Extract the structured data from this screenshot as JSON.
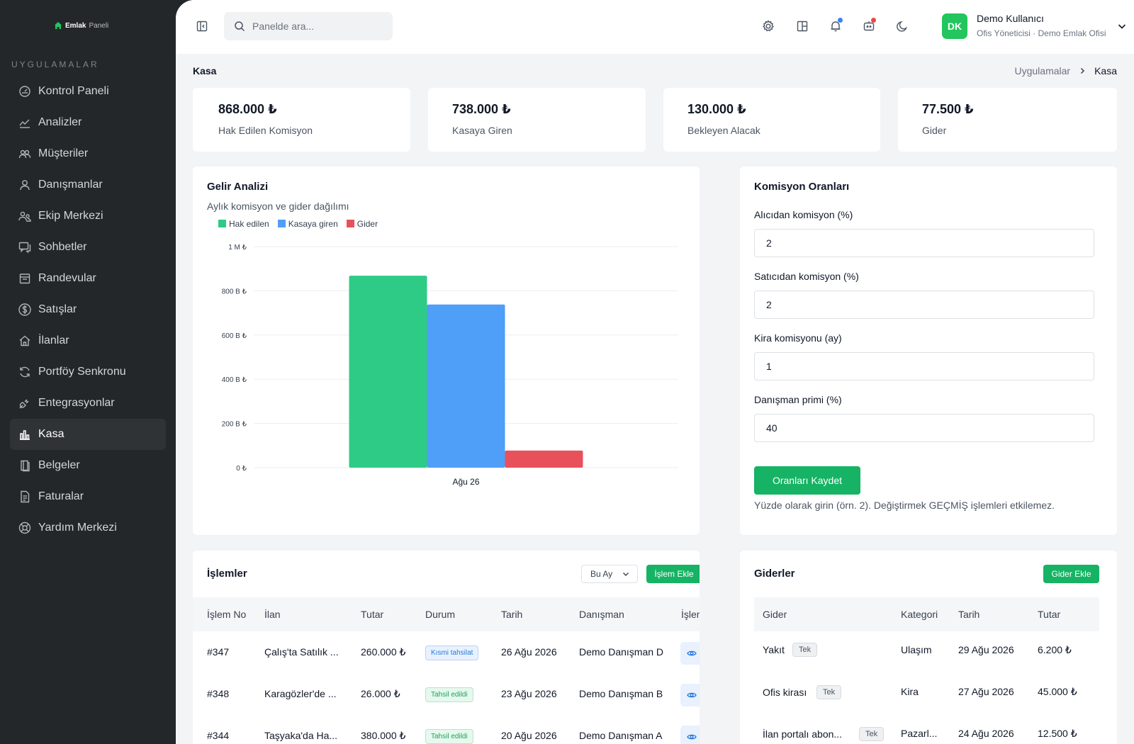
{
  "brand": {
    "name": "Emlak",
    "suffix": "Paneli"
  },
  "sidebar": {
    "section_title": "UYGULAMALAR",
    "items": [
      {
        "label": "Kontrol Paneli",
        "icon": "dashboard-icon"
      },
      {
        "label": "Analizler",
        "icon": "analytics-icon"
      },
      {
        "label": "Müşteriler",
        "icon": "customers-icon"
      },
      {
        "label": "Danışmanlar",
        "icon": "user-icon"
      },
      {
        "label": "Ekip Merkezi",
        "icon": "team-icon"
      },
      {
        "label": "Sohbetler",
        "icon": "chat-icon"
      },
      {
        "label": "Randevular",
        "icon": "calendar-icon"
      },
      {
        "label": "Satışlar",
        "icon": "dollar-icon"
      },
      {
        "label": "İlanlar",
        "icon": "home-icon"
      },
      {
        "label": "Portföy Senkronu",
        "icon": "sync-icon"
      },
      {
        "label": "Entegrasyonlar",
        "icon": "plug-icon"
      },
      {
        "label": "Kasa",
        "icon": "bar-chart-icon",
        "active": true
      },
      {
        "label": "Belgeler",
        "icon": "book-icon"
      },
      {
        "label": "Faturalar",
        "icon": "invoice-icon"
      },
      {
        "label": "Yardım Merkezi",
        "icon": "help-icon"
      }
    ]
  },
  "topbar": {
    "search_placeholder": "Panelde ara...",
    "user": {
      "initials": "DK",
      "name": "Demo Kullanıcı",
      "role": "Ofis Yöneticisi · Demo Emlak Ofisi"
    },
    "accent": "#22c55e",
    "notification_dot_color": "#3b82f6",
    "chat_dot_color": "#ef4444"
  },
  "page": {
    "title": "Kasa",
    "breadcrumb": [
      "Uygulamalar",
      "Kasa"
    ]
  },
  "stats": [
    {
      "value": "868.000 ₺",
      "label": "Hak Edilen Komisyon"
    },
    {
      "value": "738.000 ₺",
      "label": "Kasaya Giren"
    },
    {
      "value": "130.000 ₺",
      "label": "Bekleyen Alacak"
    },
    {
      "value": "77.500 ₺",
      "label": "Gider"
    }
  ],
  "revenue": {
    "title": "Gelir Analizi",
    "subtitle": "Aylık komisyon ve gider dağılımı"
  },
  "chart_data": {
    "type": "bar",
    "categories": [
      "Ağu 26"
    ],
    "series": [
      {
        "name": "Hak edilen",
        "values": [
          868000
        ],
        "color": "#2ecb86"
      },
      {
        "name": "Kasaya giren",
        "values": [
          738000
        ],
        "color": "#4f9ef8"
      },
      {
        "name": "Gider",
        "values": [
          77500
        ],
        "color": "#e8515b"
      }
    ],
    "ylim": [
      0,
      1000000
    ],
    "yticks": [
      {
        "value": 0,
        "label": "0 ₺"
      },
      {
        "value": 200000,
        "label": "200 B ₺"
      },
      {
        "value": 400000,
        "label": "400 B ₺"
      },
      {
        "value": 600000,
        "label": "600 B ₺"
      },
      {
        "value": 800000,
        "label": "800 B ₺"
      },
      {
        "value": 1000000,
        "label": "1 M ₺"
      }
    ],
    "grid": true,
    "legend": "top-left"
  },
  "commission": {
    "title": "Komisyon Oranları",
    "fields": [
      {
        "label": "Alıcıdan komisyon (%)",
        "value": "2"
      },
      {
        "label": "Satıcıdan komisyon (%)",
        "value": "2"
      },
      {
        "label": "Kira komisyonu (ay)",
        "value": "1"
      },
      {
        "label": "Danışman primi (%)",
        "value": "40"
      }
    ],
    "save_label": "Oranları Kaydet",
    "hint": "Yüzde olarak girin (örn. 2). Değiştirmek GEÇMİŞ işlemleri etkilemez."
  },
  "transactions": {
    "title": "İşlemler",
    "filter": "Bu Ay",
    "add_label": "İşlem Ekle",
    "columns": [
      "İşlem No",
      "İlan",
      "Tutar",
      "Durum",
      "Tarih",
      "Danışman",
      "İşlem"
    ],
    "rows": [
      {
        "no": "#347",
        "listing": "Çalış'ta Satılık ...",
        "amount": "260.000 ₺",
        "status": "Kısmi tahsilat",
        "status_type": "partial",
        "date": "26 Ağu 2026",
        "agent": "Demo Danışman D"
      },
      {
        "no": "#348",
        "listing": "Karagözler'de ...",
        "amount": "26.000 ₺",
        "status": "Tahsil edildi",
        "status_type": "done",
        "date": "23 Ağu 2026",
        "agent": "Demo Danışman B"
      },
      {
        "no": "#344",
        "listing": "Taşyaka'da Ha...",
        "amount": "380.000 ₺",
        "status": "Tahsil edildi",
        "status_type": "done",
        "date": "20 Ağu 2026",
        "agent": "Demo Danışman A"
      }
    ]
  },
  "expenses": {
    "title": "Giderler",
    "add_label": "Gider Ekle",
    "columns": [
      "Gider",
      "Kategori",
      "Tarih",
      "Tutar"
    ],
    "rows": [
      {
        "name": "Yakıt",
        "tag": "Tek",
        "category": "Ulaşım",
        "date": "29 Ağu 2026",
        "amount": "6.200 ₺"
      },
      {
        "name": "Ofis kirası",
        "tag": "Tek",
        "category": "Kira",
        "date": "27 Ağu 2026",
        "amount": "45.000 ₺"
      },
      {
        "name": "İlan portalı abon...",
        "tag": "Tek",
        "category": "Pazarl...",
        "date": "24 Ağu 2026",
        "amount": "12.500 ₺"
      }
    ]
  }
}
